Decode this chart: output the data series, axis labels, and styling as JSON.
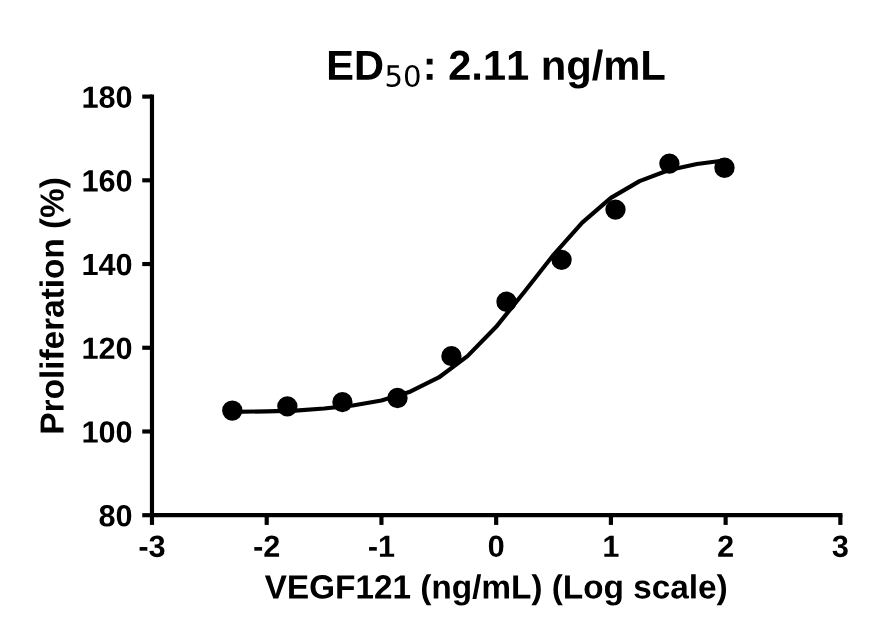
{
  "chart_data": {
    "type": "scatter",
    "title": "ED$_{50}$: 2.11 ng/mL",
    "xlabel": "VEGF121 (ng/mL) (Log scale)",
    "ylabel": "Proliferation (%)",
    "xlim": [
      -3,
      3
    ],
    "xticks": [
      -3,
      -2,
      -1,
      0,
      1,
      2,
      3
    ],
    "ylim": [
      80,
      180
    ],
    "yticks": [
      80,
      100,
      120,
      140,
      160,
      180
    ],
    "grid": false,
    "legend": false,
    "series": [
      {
        "color": "#000000",
        "marker": "circle",
        "x": [
          -2.3,
          -1.82,
          -1.34,
          -0.86,
          -0.39,
          0.09,
          0.57,
          1.04,
          1.51,
          1.99
        ],
        "values": [
          105,
          106,
          107,
          108,
          118,
          131,
          141,
          153,
          164,
          163
        ]
      },
      {
        "type": "line",
        "color": "#000000",
        "marker": "none",
        "line_style": "solid",
        "x": [
          -2.3,
          -2.0,
          -1.75,
          -1.5,
          -1.25,
          -1.0,
          -0.75,
          -0.5,
          -0.25,
          0,
          0.25,
          0.5,
          0.75,
          1.0,
          1.25,
          1.5,
          1.75,
          2.0
        ],
        "values": [
          104.7,
          104.8,
          105.0,
          105.5,
          106.2,
          107.4,
          109.5,
          112.9,
          118.0,
          125.0,
          133.5,
          142.2,
          149.9,
          155.8,
          159.8,
          162.4,
          163.9,
          164.8
        ]
      }
    ]
  }
}
